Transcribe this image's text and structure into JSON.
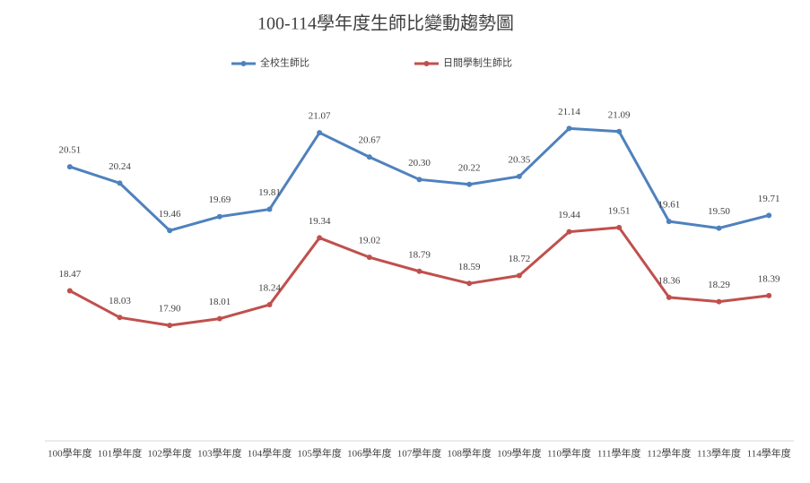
{
  "chart_data": {
    "type": "line",
    "title": "100-114學年度生師比變動趨勢圖",
    "categories": [
      "100學年度",
      "101學年度",
      "102學年度",
      "103學年度",
      "104學年度",
      "105學年度",
      "106學年度",
      "107學年度",
      "108學年度",
      "109學年度",
      "110學年度",
      "111學年度",
      "112學年度",
      "113學年度",
      "114學年度"
    ],
    "series": [
      {
        "name": "全校生師比",
        "color": "#4f81bd",
        "values": [
          20.51,
          20.24,
          19.46,
          19.69,
          19.81,
          21.07,
          20.67,
          20.3,
          20.22,
          20.35,
          21.14,
          21.09,
          19.61,
          19.5,
          19.71
        ],
        "value_labels": [
          "20.51",
          "20.24",
          "19.46",
          "19.69",
          "19.81",
          "21.07",
          "20.67",
          "20.30",
          "20.22",
          "20.35",
          "21.14",
          "21.09",
          "19.61",
          "19.50",
          "19.71"
        ]
      },
      {
        "name": "日間學制生師比",
        "color": "#c0504d",
        "values": [
          18.47,
          18.03,
          17.9,
          18.01,
          18.24,
          19.34,
          19.02,
          18.79,
          18.59,
          18.72,
          19.44,
          19.51,
          18.36,
          18.29,
          18.39
        ],
        "value_labels": [
          "18.47",
          "18.03",
          "17.90",
          "18.01",
          "18.24",
          "19.34",
          "19.02",
          "18.79",
          "18.59",
          "18.72",
          "19.44",
          "19.51",
          "18.36",
          "18.29",
          "18.39"
        ]
      }
    ],
    "ylim": [
      16,
      22
    ],
    "legend": "top"
  }
}
